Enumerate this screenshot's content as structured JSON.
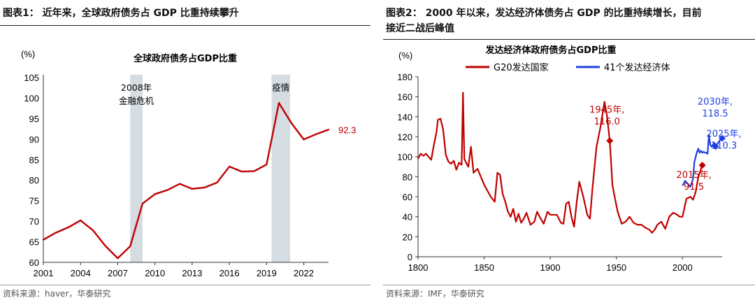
{
  "left": {
    "figure_title": "图表1：  近年来，全球政府债务占 GDP 比重持续攀升",
    "source": "资料来源：haver，华泰研究",
    "chart_data": {
      "type": "line",
      "title": "全球政府债务占GDP比重",
      "unit_label": "(%)",
      "xlim": [
        2001,
        2024
      ],
      "ylim": [
        60,
        105
      ],
      "x_ticks": [
        2001,
        2004,
        2007,
        2010,
        2013,
        2016,
        2019,
        2022
      ],
      "y_ticks": [
        60,
        65,
        70,
        75,
        80,
        85,
        90,
        95,
        100,
        105
      ],
      "color": "#c00000",
      "series": [
        {
          "x": [
            2001,
            2002,
            2003,
            2004,
            2005,
            2006,
            2007,
            2008,
            2009,
            2010,
            2011,
            2012,
            2013,
            2014,
            2015,
            2016,
            2017,
            2018,
            2019,
            2020,
            2021,
            2022,
            2023,
            2024
          ],
          "values": [
            65.5,
            67.2,
            68.5,
            70.2,
            67.8,
            64,
            61,
            63.9,
            74.3,
            76.6,
            77.6,
            79.1,
            77.9,
            78.2,
            79.4,
            83.3,
            82.1,
            82.2,
            83.8,
            98.8,
            93.9,
            89.9,
            91.2,
            92.3
          ]
        }
      ],
      "end_label": "92.3",
      "shaded_regions": [
        {
          "start": 2008,
          "end": 2009,
          "label_lines": [
            "2008年",
            "金融危机"
          ]
        },
        {
          "start": 2019.4,
          "end": 2020.9,
          "label_lines": [
            "疫情"
          ]
        }
      ],
      "shade_color": "#d5dde3"
    }
  },
  "right": {
    "figure_title_lines": [
      "图表2：  2000 年以来，发达经济体债务占 GDP 的比重持续增长，目前",
      "接近二战后峰值"
    ],
    "source": "资料来源：IMF，华泰研究",
    "chart_data": {
      "type": "line",
      "title": "发达经济体政府债务占GDP比重",
      "unit_label": "(%)",
      "xlim": [
        1800,
        2030
      ],
      "ylim": [
        0,
        180
      ],
      "x_ticks": [
        1800,
        1850,
        1900,
        1950,
        2000
      ],
      "y_ticks": [
        0,
        20,
        40,
        60,
        80,
        100,
        120,
        140,
        160,
        180
      ],
      "series": [
        {
          "name": "G20发达国家",
          "color": "#c00000",
          "x": [
            1800,
            1802,
            1804,
            1806,
            1808,
            1810,
            1812,
            1814,
            1815,
            1817,
            1819,
            1821,
            1823,
            1825,
            1827,
            1829,
            1831,
            1833,
            1834,
            1835,
            1836,
            1838,
            1840,
            1842,
            1845,
            1850,
            1855,
            1858,
            1860,
            1862,
            1864,
            1866,
            1868,
            1870,
            1872,
            1874,
            1876,
            1878,
            1880,
            1882,
            1885,
            1888,
            1890,
            1892,
            1895,
            1898,
            1900,
            1905,
            1908,
            1910,
            1912,
            1914,
            1916,
            1918,
            1920,
            1922,
            1925,
            1928,
            1930,
            1932,
            1935,
            1938,
            1941,
            1943,
            1945,
            1946,
            1947,
            1949,
            1951,
            1954,
            1957,
            1960,
            1963,
            1966,
            1969,
            1972,
            1975,
            1977,
            1979,
            1981,
            1984,
            1987,
            1990,
            1993,
            1996,
            1998,
            2000,
            2003,
            2006,
            2008,
            2010,
            2012,
            2015
          ],
          "values": [
            98,
            103,
            101,
            103,
            100,
            97,
            112,
            125,
            137,
            138,
            127,
            102,
            95,
            93,
            96,
            87,
            94,
            92,
            164,
            98,
            95,
            90,
            110,
            84,
            88,
            72,
            60,
            55,
            84,
            82,
            63,
            55,
            45,
            40,
            48,
            35,
            43,
            34,
            38,
            44,
            32,
            35,
            45,
            40,
            33,
            45,
            42,
            42,
            34,
            33,
            53,
            55,
            40,
            30,
            55,
            75,
            60,
            42,
            38,
            70,
            110,
            130,
            155,
            140,
            116,
            95,
            72,
            58,
            45,
            33,
            35,
            40,
            34,
            32,
            32,
            29,
            27,
            24,
            27,
            32,
            35,
            28,
            40,
            44,
            42,
            40,
            40,
            58,
            60,
            57,
            65,
            80,
            91.5
          ]
        },
        {
          "name": "41个发达经济体",
          "color": "#1f3fe0",
          "x": [
            2000,
            2002,
            2004,
            2006,
            2008,
            2009,
            2010,
            2011,
            2012,
            2013,
            2014,
            2015,
            2016,
            2017,
            2018,
            2019,
            2020,
            2021,
            2022,
            2023,
            2024,
            2025,
            2026,
            2027,
            2028,
            2029,
            2030
          ],
          "values": [
            71,
            76,
            73,
            70,
            78,
            95,
            100,
            105,
            108,
            104,
            106,
            104,
            105,
            104,
            104,
            103,
            122,
            112,
            110,
            112,
            114,
            110.3,
            112,
            114,
            116,
            117,
            118.5
          ]
        }
      ],
      "annotations": [
        {
          "x": 1945,
          "y": 116.0,
          "lines": [
            "1945年,",
            "116.0"
          ],
          "color": "#c00000"
        },
        {
          "x": 2015,
          "y": 91.5,
          "lines": [
            "2015年,",
            "91.5"
          ],
          "color": "#c00000"
        },
        {
          "x": 2025,
          "y": 110.3,
          "lines": [
            "2025年,",
            "110.3"
          ],
          "color": "#1f3fe0"
        },
        {
          "x": 2030,
          "y": 118.5,
          "lines": [
            "2030年,",
            "118.5"
          ],
          "color": "#1f3fe0"
        }
      ]
    }
  }
}
